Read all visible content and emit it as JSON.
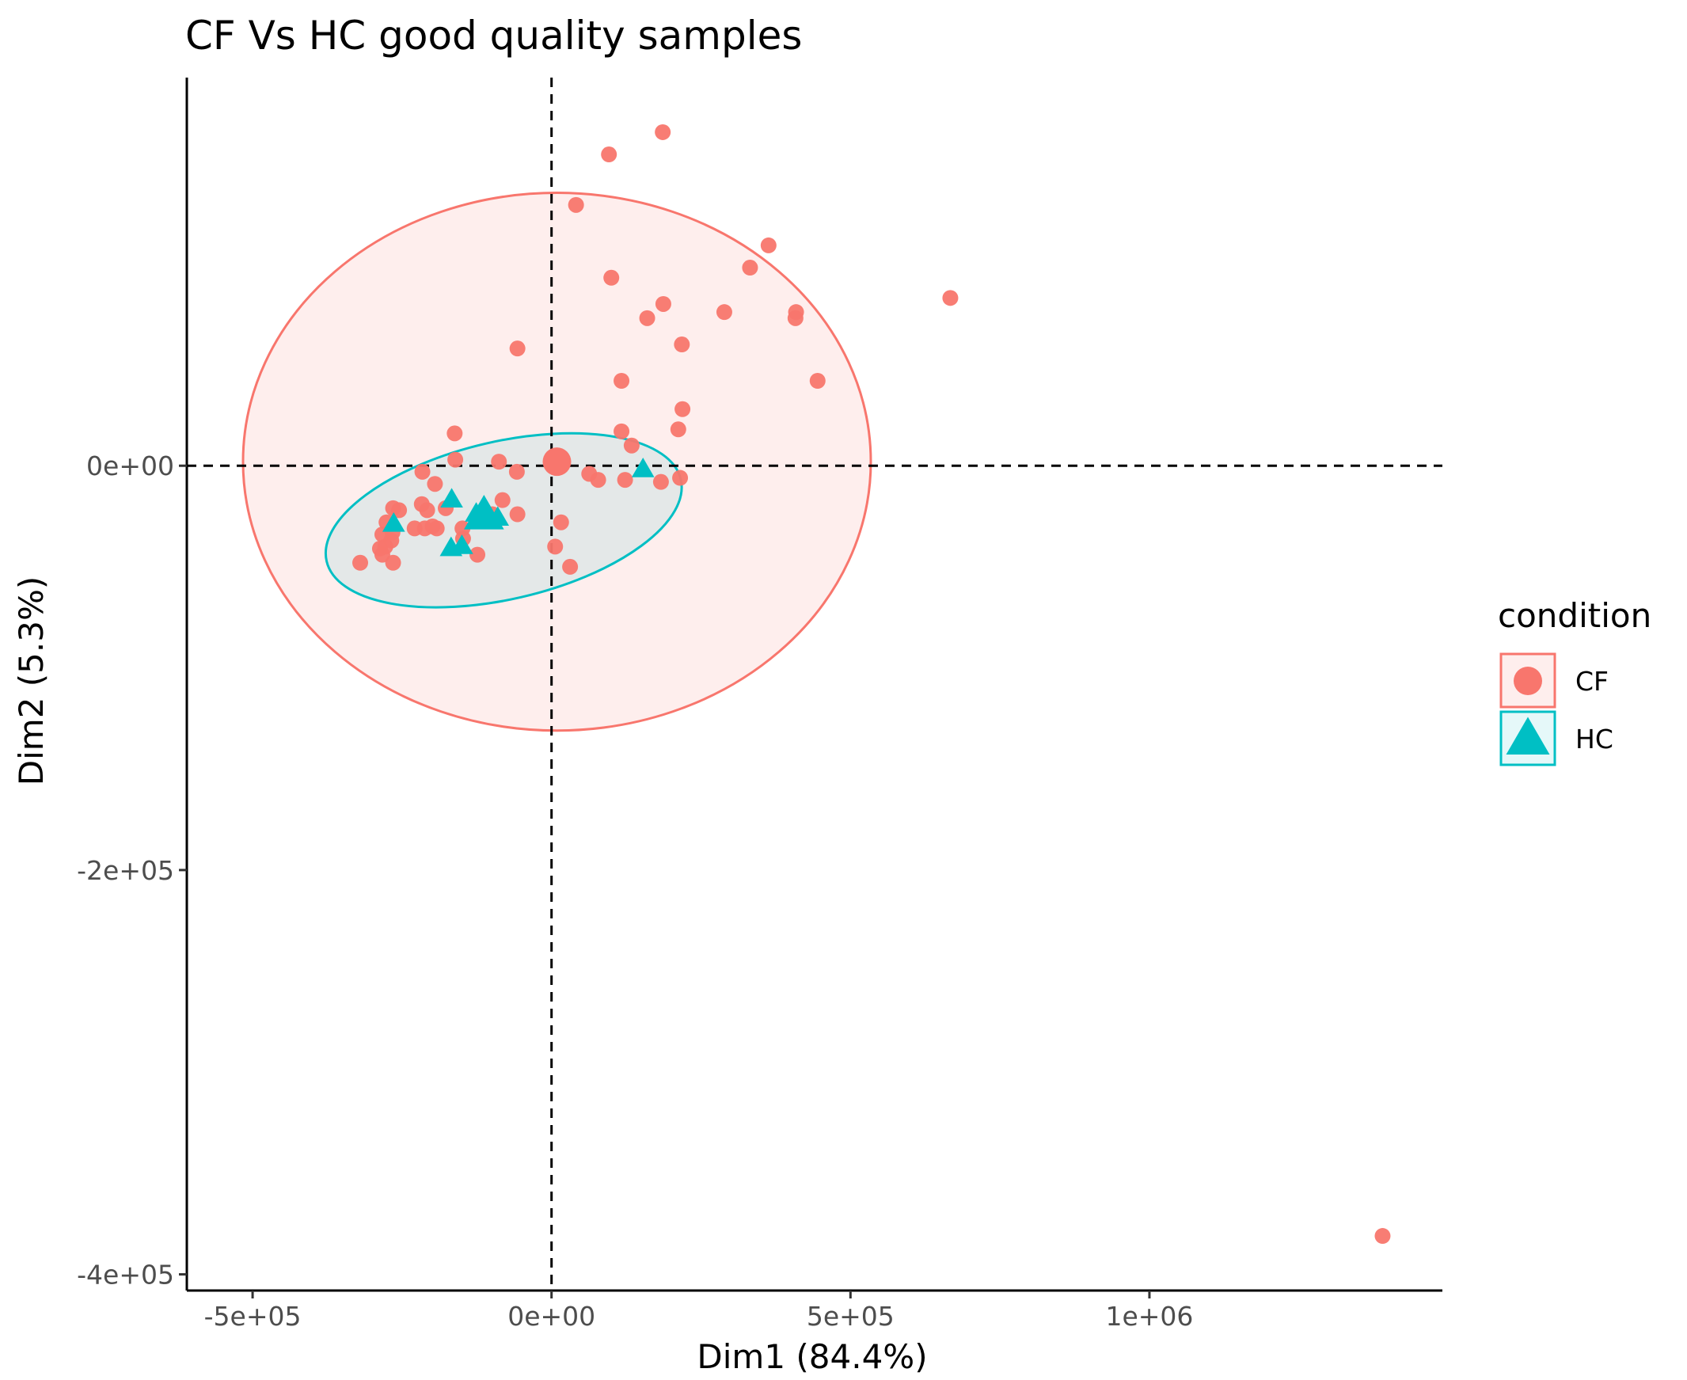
{
  "chart_data": {
    "type": "scatter",
    "title": "CF Vs HC good quality samples",
    "xlabel": "Dim1 (84.4%)",
    "ylabel": "Dim2 (5.3%)",
    "xlim": [
      -610000,
      1490000
    ],
    "ylim": [
      -408000,
      192000
    ],
    "x_ticks": [
      {
        "value": -500000,
        "label": "-5e+05"
      },
      {
        "value": 0,
        "label": "0e+00"
      },
      {
        "value": 500000,
        "label": "5e+05"
      },
      {
        "value": 1000000,
        "label": "1e+06"
      }
    ],
    "y_ticks": [
      {
        "value": 0,
        "label": "0e+00"
      },
      {
        "value": -200000,
        "label": "-2e+05"
      },
      {
        "value": -400000,
        "label": "-4e+05"
      }
    ],
    "grid": false,
    "reference_lines": {
      "x": 0,
      "y": 0,
      "style": "dashed"
    },
    "legend": {
      "title": "condition",
      "position": "right",
      "entries": [
        {
          "label": "CF",
          "shape": "circle",
          "color": "#F8766D"
        },
        {
          "label": "HC",
          "shape": "triangle",
          "color": "#00BFC4"
        }
      ]
    },
    "series": [
      {
        "name": "CF",
        "color": "#F8766D",
        "shape": "circle",
        "centroid": [
          9000,
          2000
        ],
        "ellipse": {
          "cx": 9000,
          "cy": 2000,
          "rx": 525000,
          "ry": 133000,
          "angle": 0
        },
        "points": [
          [
            186000,
            165000
          ],
          [
            96000,
            154000
          ],
          [
            41000,
            129000
          ],
          [
            363000,
            109000
          ],
          [
            332000,
            98000
          ],
          [
            100000,
            93000
          ],
          [
            667000,
            83000
          ],
          [
            187000,
            80000
          ],
          [
            289000,
            76000
          ],
          [
            160000,
            73000
          ],
          [
            409000,
            76000
          ],
          [
            408000,
            73000
          ],
          [
            -57000,
            58000
          ],
          [
            218000,
            60000
          ],
          [
            117000,
            42000
          ],
          [
            445000,
            42000
          ],
          [
            219000,
            28000
          ],
          [
            -162000,
            16000
          ],
          [
            117000,
            17000
          ],
          [
            212000,
            18000
          ],
          [
            -161000,
            3000
          ],
          [
            -88000,
            2000
          ],
          [
            134000,
            10000
          ],
          [
            -216000,
            -3000
          ],
          [
            -58000,
            -3000
          ],
          [
            63000,
            -4000
          ],
          [
            78000,
            -7000
          ],
          [
            123000,
            -7000
          ],
          [
            215000,
            -6000
          ],
          [
            -195000,
            -9000
          ],
          [
            -177000,
            -21000
          ],
          [
            -265000,
            -21000
          ],
          [
            -217000,
            -19000
          ],
          [
            -208000,
            -22000
          ],
          [
            -255000,
            -22000
          ],
          [
            -99000,
            -24000
          ],
          [
            -57000,
            -24000
          ],
          [
            -82000,
            -17000
          ],
          [
            -276000,
            -28000
          ],
          [
            -199000,
            -30000
          ],
          [
            -192000,
            -31000
          ],
          [
            -212000,
            -31000
          ],
          [
            -229000,
            -31000
          ],
          [
            -149000,
            -31000
          ],
          [
            -266000,
            -33000
          ],
          [
            -283000,
            -34000
          ],
          [
            -148000,
            -36000
          ],
          [
            -268000,
            -37000
          ],
          [
            -278000,
            -40000
          ],
          [
            -287000,
            -41000
          ],
          [
            -124000,
            -44000
          ],
          [
            -283000,
            -44000
          ],
          [
            -265000,
            -48000
          ],
          [
            -320000,
            -48000
          ],
          [
            16000,
            -28000
          ],
          [
            6000,
            -40000
          ],
          [
            31000,
            -50000
          ],
          [
            183000,
            -8000
          ],
          [
            1390000,
            -381000
          ]
        ]
      },
      {
        "name": "HC",
        "color": "#00BFC4",
        "shape": "triangle",
        "centroid": [
          -113000,
          -25000
        ],
        "ellipse": {
          "cx": -80000,
          "cy": -27000,
          "rx": 304000,
          "ry": 39000,
          "angle": -13
        },
        "points": [
          [
            153000,
            -2000
          ],
          [
            -167000,
            -17000
          ],
          [
            -264000,
            -29000
          ],
          [
            -168000,
            -41000
          ],
          [
            -150000,
            -40000
          ],
          [
            -90000,
            -26000
          ],
          [
            -126000,
            -24000
          ]
        ]
      }
    ]
  }
}
